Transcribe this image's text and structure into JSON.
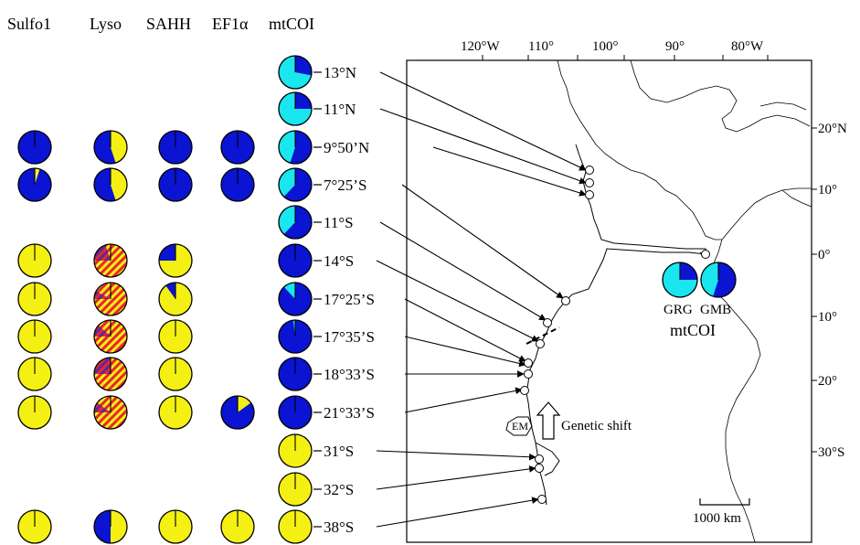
{
  "columns": [
    "Sulfo1",
    "Lyso",
    "SAHH",
    "EF1α",
    "mtCOI"
  ],
  "colors": {
    "blue": "#0a14d2",
    "yellow": "#f5f013",
    "cyan": "#19e6ee",
    "red": "#e8262e",
    "purple": "#5a2a9a"
  },
  "sites": [
    {
      "label": "13°N",
      "pies": {
        "mtCOI": {
          "type": "bc",
          "blue": 0.28
        }
      }
    },
    {
      "label": "11°N",
      "pies": {
        "mtCOI": {
          "type": "bc",
          "blue": 0.25
        }
      }
    },
    {
      "label": "9°50’N",
      "pies": {
        "Sulfo1": {
          "type": "by",
          "yellow": 0
        },
        "Lyso": {
          "type": "by",
          "yellow": 0.45
        },
        "SAHH": {
          "type": "by",
          "yellow": 0
        },
        "EF1α": {
          "type": "by",
          "yellow": 0
        },
        "mtCOI": {
          "type": "bc",
          "blue": 0.55
        }
      }
    },
    {
      "label": "7°25’S",
      "pies": {
        "Sulfo1": {
          "type": "by",
          "yellow": 0.05
        },
        "Lyso": {
          "type": "by",
          "yellow": 0.45
        },
        "SAHH": {
          "type": "by",
          "yellow": 0
        },
        "EF1α": {
          "type": "by",
          "yellow": 0
        },
        "mtCOI": {
          "type": "bc",
          "blue": 0.62
        }
      }
    },
    {
      "label": "11°S",
      "pies": {
        "mtCOI": {
          "type": "bc",
          "blue": 0.62
        }
      }
    },
    {
      "label": "14°S",
      "pies": {
        "Sulfo1": {
          "type": "by",
          "yellow": 1
        },
        "Lyso": {
          "type": "mix",
          "blue": 0.2,
          "hybrid": 0.8
        },
        "SAHH": {
          "type": "by",
          "yellow": 0.75
        },
        "mtCOI": {
          "type": "bc",
          "blue": 1
        }
      }
    },
    {
      "label": "17°25’S",
      "pies": {
        "Sulfo1": {
          "type": "by",
          "yellow": 1
        },
        "Lyso": {
          "type": "mix",
          "blue": 0.08,
          "hybrid": 0.92
        },
        "SAHH": {
          "type": "by",
          "yellow": 0.9
        },
        "mtCOI": {
          "type": "bc",
          "blue": 0.88
        }
      }
    },
    {
      "label": "17°35’S",
      "pies": {
        "Sulfo1": {
          "type": "by",
          "yellow": 1
        },
        "Lyso": {
          "type": "mix",
          "blue": 0.12,
          "hybrid": 0.88
        },
        "SAHH": {
          "type": "by",
          "yellow": 1
        },
        "mtCOI": {
          "type": "bc",
          "blue": 0.98
        }
      }
    },
    {
      "label": "18°33’S",
      "pies": {
        "Sulfo1": {
          "type": "by",
          "yellow": 1
        },
        "Lyso": {
          "type": "mix",
          "blue": 0.25,
          "hybrid": 0.75
        },
        "SAHH": {
          "type": "by",
          "yellow": 1
        },
        "mtCOI": {
          "type": "bc",
          "blue": 1
        }
      }
    },
    {
      "label": "21°33’S",
      "pies": {
        "Sulfo1": {
          "type": "by",
          "yellow": 1
        },
        "Lyso": {
          "type": "mix",
          "blue": 0.1,
          "hybrid": 0.9
        },
        "SAHH": {
          "type": "by",
          "yellow": 1
        },
        "EF1α": {
          "type": "by",
          "yellow": 0.15
        },
        "mtCOI": {
          "type": "bc",
          "blue": 1
        }
      }
    },
    {
      "label": "31°S",
      "pies": {
        "mtCOI": {
          "type": "by",
          "yellow": 1
        }
      }
    },
    {
      "label": "32°S",
      "pies": {
        "mtCOI": {
          "type": "by",
          "yellow": 1
        }
      }
    },
    {
      "label": "38°S",
      "pies": {
        "Sulfo1": {
          "type": "by",
          "yellow": 1
        },
        "Lyso": {
          "type": "by",
          "yellow": 0.5
        },
        "SAHH": {
          "type": "by",
          "yellow": 1
        },
        "EF1α": {
          "type": "by",
          "yellow": 1
        },
        "mtCOI": {
          "type": "by",
          "yellow": 1
        }
      }
    }
  ],
  "map": {
    "top_labels": [
      "120°W",
      "110°",
      "100°",
      "90°",
      "80°W"
    ],
    "right_labels": [
      "20°N",
      "10°",
      "0°",
      "10°",
      "20°",
      "30°S"
    ],
    "inset_pies": [
      {
        "label": "GRG",
        "blue": 0.25
      },
      {
        "label": "GMB",
        "blue": 0.55
      }
    ],
    "inset_caption": "mtCOI",
    "arrow_label": "Genetic shift",
    "em_label": "EM",
    "scale_label": "1000 km"
  }
}
